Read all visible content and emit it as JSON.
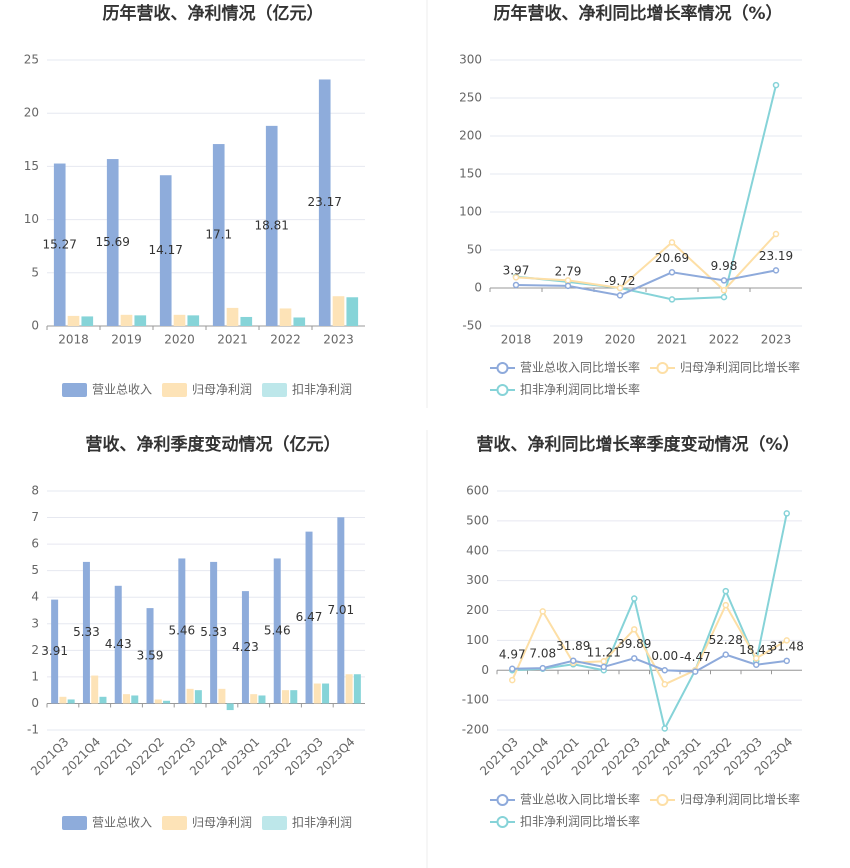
{
  "chart_data": [
    {
      "type": "bar",
      "title": "历年营收、净利情况（亿元）",
      "categories": [
        "2018",
        "2019",
        "2020",
        "2021",
        "2022",
        "2023"
      ],
      "series": [
        {
          "name": "营业总收入",
          "color": "#8eacdb",
          "values": [
            15.27,
            15.69,
            14.17,
            17.1,
            18.81,
            23.17
          ]
        },
        {
          "name": "归母净利润",
          "color": "#fde3b7",
          "values": [
            0.95,
            1.05,
            1.05,
            1.7,
            1.65,
            2.8
          ]
        },
        {
          "name": "扣非净利润",
          "color": "#86d4d8",
          "values": [
            0.9,
            1.0,
            1.0,
            0.85,
            0.8,
            2.7
          ]
        }
      ],
      "ylim": [
        0,
        25
      ],
      "yticks": [
        0,
        5,
        10,
        15,
        20,
        25
      ],
      "grid": true
    },
    {
      "type": "line",
      "title": "历年营收、净利同比增长率情况（%）",
      "categories": [
        "2018",
        "2019",
        "2020",
        "2021",
        "2022",
        "2023"
      ],
      "series": [
        {
          "name": "营业总收入同比增长率",
          "color": "#8eaadb",
          "values": [
            3.97,
            2.79,
            -9.72,
            20.69,
            9.98,
            23.19
          ]
        },
        {
          "name": "归母净利润同比增长率",
          "color": "#fddfa6",
          "values": [
            14,
            10,
            0,
            60,
            -3,
            71
          ]
        },
        {
          "name": "扣非净利润同比增长率",
          "color": "#86d3d8",
          "values": [
            15,
            8,
            0,
            -15,
            -12,
            267
          ]
        }
      ],
      "ylim": [
        -50,
        300
      ],
      "yticks": [
        -50,
        0,
        50,
        100,
        150,
        200,
        250,
        300
      ],
      "grid": true
    },
    {
      "type": "bar",
      "title": "营收、净利季度变动情况（亿元）",
      "categories": [
        "2021Q3",
        "2021Q4",
        "2022Q1",
        "2022Q2",
        "2022Q3",
        "2022Q4",
        "2023Q1",
        "2023Q2",
        "2023Q3",
        "2023Q4"
      ],
      "series": [
        {
          "name": "营业总收入",
          "color": "#8eacdb",
          "values": [
            3.91,
            5.33,
            4.43,
            3.59,
            5.46,
            5.33,
            4.23,
            5.46,
            6.47,
            7.01
          ]
        },
        {
          "name": "归母净利润",
          "color": "#fde3b7",
          "values": [
            0.25,
            1.05,
            0.35,
            0.15,
            0.55,
            0.55,
            0.35,
            0.5,
            0.75,
            1.1
          ]
        },
        {
          "name": "扣非净利润",
          "color": "#86d4d8",
          "values": [
            0.15,
            0.25,
            0.3,
            0.1,
            0.5,
            -0.25,
            0.3,
            0.5,
            0.75,
            1.1
          ]
        }
      ],
      "ylim": [
        -1,
        8
      ],
      "yticks": [
        -1,
        0,
        1,
        2,
        3,
        4,
        5,
        6,
        7,
        8
      ],
      "grid": true
    },
    {
      "type": "line",
      "title": "营收、净利同比增长率季度变动情况（%）",
      "categories": [
        "2021Q3",
        "2021Q4",
        "2022Q1",
        "2022Q2",
        "2022Q3",
        "2022Q4",
        "2023Q1",
        "2023Q2",
        "2023Q3",
        "2023Q4"
      ],
      "series": [
        {
          "name": "营业总收入同比增长率",
          "color": "#8eaadb",
          "values": [
            4.97,
            7.08,
            31.89,
            11.21,
            39.89,
            0,
            -4.47,
            52.28,
            18.43,
            31.48
          ],
          "value_labels": [
            "4.97",
            "7.08",
            "31.89",
            "11.21",
            "39.89",
            "0.00",
            "-4.47",
            "52.28",
            "18.43",
            "31.48"
          ]
        },
        {
          "name": "归母净利润同比增长率",
          "color": "#fddfa6",
          "values": [
            -33,
            197,
            25,
            30,
            137,
            -47,
            0,
            218,
            40,
            100
          ]
        },
        {
          "name": "扣非净利润同比增长率",
          "color": "#86d3d8",
          "values": [
            0,
            5,
            20,
            0,
            240,
            -195,
            0,
            265,
            30,
            525
          ]
        }
      ],
      "ylim": [
        -200,
        600
      ],
      "yticks": [
        -200,
        -100,
        0,
        100,
        200,
        300,
        400,
        500,
        600
      ],
      "grid": true
    }
  ]
}
